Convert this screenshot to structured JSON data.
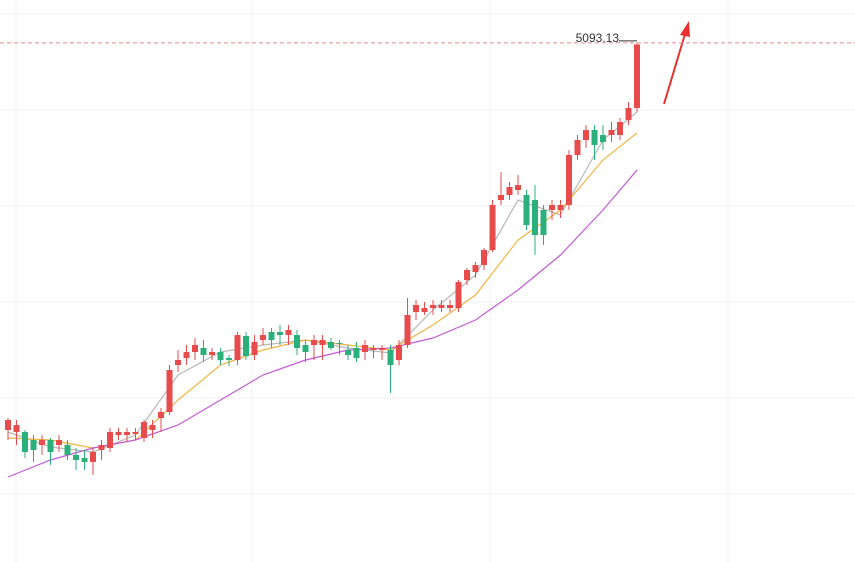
{
  "chart_data": {
    "type": "candlestick",
    "open": [
      4319,
      4315,
      4315,
      4299,
      4289,
      4299,
      4289,
      4289,
      4269,
      4263,
      4255,
      4279,
      4283,
      4309,
      4309,
      4311,
      4303,
      4319,
      4343,
      4355,
      4449,
      4463,
      4475,
      4483,
      4469,
      4475,
      4463,
      4459,
      4507,
      4469,
      4499,
      4515,
      4515,
      4509,
      4509,
      4489,
      4489,
      4489,
      4495,
      4493,
      4479,
      4483,
      4475,
      4479,
      4479,
      4479,
      4459,
      4489,
      4555,
      4555,
      4563,
      4563,
      4563,
      4563,
      4619,
      4635,
      4649,
      4679,
      4779,
      4789,
      4799,
      4789,
      4779,
      4759,
      4759,
      4759,
      4769,
      4869,
      4899,
      4919,
      4909,
      4909,
      4909,
      4939,
      4963
    ],
    "high": [
      4343,
      4339,
      4319,
      4309,
      4309,
      4303,
      4309,
      4299,
      4283,
      4279,
      4283,
      4299,
      4323,
      4323,
      4323,
      4323,
      4339,
      4339,
      4363,
      4449,
      4479,
      4489,
      4503,
      4499,
      4483,
      4483,
      4469,
      4515,
      4515,
      4509,
      4523,
      4523,
      4529,
      4529,
      4519,
      4499,
      4509,
      4509,
      4503,
      4499,
      4489,
      4495,
      4499,
      4489,
      4489,
      4489,
      4499,
      4583,
      4579,
      4575,
      4579,
      4579,
      4579,
      4619,
      4643,
      4655,
      4683,
      4779,
      4835,
      4815,
      4829,
      4799,
      4809,
      4769,
      4779,
      4779,
      4879,
      4909,
      4929,
      4929,
      4929,
      4935,
      4943,
      4975,
      5093.13
    ],
    "low": [
      4299,
      4289,
      4263,
      4255,
      4269,
      4249,
      4275,
      4259,
      4239,
      4239,
      4229,
      4259,
      4275,
      4299,
      4295,
      4299,
      4295,
      4303,
      4315,
      4349,
      4435,
      4449,
      4459,
      4455,
      4459,
      4449,
      4447,
      4449,
      4459,
      4459,
      4489,
      4483,
      4489,
      4489,
      4469,
      4455,
      4459,
      4459,
      4479,
      4469,
      4459,
      4455,
      4459,
      4463,
      4459,
      4393,
      4449,
      4483,
      4539,
      4549,
      4549,
      4555,
      4555,
      4555,
      4609,
      4623,
      4639,
      4675,
      4769,
      4779,
      4789,
      4719,
      4669,
      4689,
      4739,
      4743,
      4759,
      4859,
      4883,
      4859,
      4879,
      4895,
      4899,
      4929,
      4955
    ],
    "close": [
      4339,
      4329,
      4275,
      4279,
      4299,
      4275,
      4299,
      4269,
      4259,
      4255,
      4275,
      4289,
      4315,
      4315,
      4315,
      4315,
      4335,
      4329,
      4355,
      4439,
      4459,
      4475,
      4489,
      4469,
      4475,
      4459,
      4459,
      4509,
      4467,
      4495,
      4509,
      4499,
      4509,
      4519,
      4483,
      4475,
      4499,
      4499,
      4483,
      4491,
      4469,
      4463,
      4489,
      4483,
      4483,
      4449,
      4489,
      4549,
      4569,
      4563,
      4569,
      4569,
      4569,
      4615,
      4639,
      4649,
      4679,
      4769,
      4789,
      4805,
      4809,
      4729,
      4709,
      4709,
      4769,
      4769,
      4869,
      4899,
      4919,
      4889,
      4895,
      4919,
      4935,
      4963,
      5090
    ],
    "up_color": "#e84b4b",
    "down_color": "#2bb07c",
    "ylim": [
      4055,
      5179
    ],
    "lines": [
      {
        "color": "#b8b8b8",
        "x": [
          0,
          5,
          10,
          15,
          20,
          25,
          30,
          35,
          40,
          45,
          50,
          55,
          60,
          65,
          70,
          74
        ],
        "values": [
          4315,
          4285,
          4275,
          4309,
          4429,
          4475,
          4489,
          4499,
          4483,
          4473,
          4559,
          4629,
          4779,
          4749,
          4899,
          4955
        ]
      },
      {
        "color": "#f2b544",
        "x": [
          0,
          5,
          10,
          15,
          20,
          25,
          30,
          35,
          40,
          45,
          50,
          55,
          60,
          65,
          70,
          74
        ],
        "values": [
          4303,
          4299,
          4283,
          4299,
          4379,
          4449,
          4479,
          4499,
          4489,
          4479,
          4529,
          4589,
          4699,
          4759,
          4859,
          4913
        ]
      },
      {
        "color": "#c45bd6",
        "x": [
          0,
          5,
          10,
          15,
          20,
          25,
          30,
          35,
          40,
          45,
          50,
          55,
          60,
          65,
          70,
          74
        ],
        "values": [
          4225,
          4259,
          4283,
          4299,
          4329,
          4379,
          4429,
          4459,
          4479,
          4483,
          4503,
          4539,
          4599,
          4669,
          4759,
          4839
        ]
      }
    ]
  }
}
